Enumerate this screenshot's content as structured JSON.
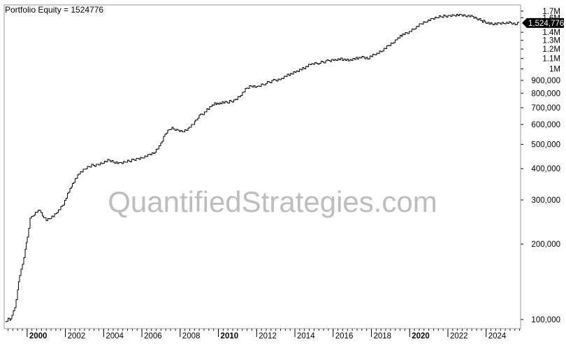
{
  "legend_label": "Portfolio Equity = 1524776",
  "watermark": "QuantifiedStrategies.com",
  "last_value_label": "1,524,776",
  "colors": {
    "background": "#ffffff",
    "line": "#000000",
    "frame": "#9a9a9a",
    "watermark": "#bdbdbd",
    "badge": "#000000",
    "badge_text": "#ffffff"
  },
  "chart_data": {
    "type": "line",
    "title": "Portfolio Equity = 1524776",
    "y_scale": "log",
    "ylim": [
      92000,
      1800000
    ],
    "xlim": [
      1998.8,
      2025.8
    ],
    "grid": false,
    "legend": "top-left",
    "x_ticks": [
      {
        "label": "2000",
        "value": 2000,
        "bold": true
      },
      {
        "label": "2002",
        "value": 2002,
        "bold": false
      },
      {
        "label": "2004",
        "value": 2004,
        "bold": false
      },
      {
        "label": "2006",
        "value": 2006,
        "bold": false
      },
      {
        "label": "2008",
        "value": 2008,
        "bold": false
      },
      {
        "label": "2010",
        "value": 2010,
        "bold": true
      },
      {
        "label": "2012",
        "value": 2012,
        "bold": false
      },
      {
        "label": "2014",
        "value": 2014,
        "bold": false
      },
      {
        "label": "2016",
        "value": 2016,
        "bold": false
      },
      {
        "label": "2018",
        "value": 2018,
        "bold": false
      },
      {
        "label": "2020",
        "value": 2020,
        "bold": true
      },
      {
        "label": "2022",
        "value": 2022,
        "bold": false
      },
      {
        "label": "2024",
        "value": 2024,
        "bold": false
      }
    ],
    "y_ticks": [
      {
        "label": "1.7M",
        "value": 1700000
      },
      {
        "label": "1.6M",
        "value": 1600000
      },
      {
        "label": "1.4M",
        "value": 1400000
      },
      {
        "label": "1.3M",
        "value": 1300000
      },
      {
        "label": "1.2M",
        "value": 1200000
      },
      {
        "label": "1.1M",
        "value": 1100000
      },
      {
        "label": "1M",
        "value": 1000000
      },
      {
        "label": "900,000",
        "value": 900000
      },
      {
        "label": "800,000",
        "value": 800000
      },
      {
        "label": "700,000",
        "value": 700000
      },
      {
        "label": "600,000",
        "value": 600000
      },
      {
        "label": "500,000",
        "value": 500000
      },
      {
        "label": "400,000",
        "value": 400000
      },
      {
        "label": "300,000",
        "value": 300000
      },
      {
        "label": "200,000",
        "value": 200000
      },
      {
        "label": "100,000",
        "value": 100000
      }
    ],
    "series": [
      {
        "x": [
          1998.85,
          1999.0,
          1999.1,
          1999.2,
          1999.35,
          1999.5,
          1999.6,
          1999.75,
          1999.9,
          2000.0,
          2000.15,
          2000.3,
          2000.5,
          2000.65,
          2000.8,
          2001.0,
          2001.15,
          2001.35,
          2001.5,
          2001.7,
          2001.9,
          2002.1,
          2002.3,
          2002.5,
          2002.7,
          2003.0,
          2003.3,
          2003.6,
          2003.9,
          2004.2,
          2004.5,
          2004.8,
          2005.1,
          2005.4,
          2005.7,
          2006.0,
          2006.3,
          2006.6,
          2006.9,
          2007.2,
          2007.5,
          2007.8,
          2008.1,
          2008.4,
          2008.6,
          2008.75,
          2008.85,
          2009.0,
          2009.2,
          2009.4,
          2009.6,
          2009.8,
          2010.0,
          2010.2,
          2010.5,
          2010.8,
          2011.1,
          2011.4,
          2011.7,
          2012.0,
          2012.4,
          2012.8,
          2013.2,
          2013.6,
          2014.0,
          2014.4,
          2014.8,
          2015.2,
          2015.6,
          2016.0,
          2016.4,
          2016.8,
          2017.2,
          2017.5,
          2017.8,
          2018.0,
          2018.2,
          2018.5,
          2018.8,
          2019.1,
          2019.3,
          2019.5,
          2019.7,
          2019.9,
          2020.2,
          2020.5,
          2020.8,
          2021.1,
          2021.4,
          2021.7,
          2022.0,
          2022.3,
          2022.6,
          2022.9,
          2023.2,
          2023.5,
          2023.8,
          2024.0,
          2024.3,
          2024.6,
          2024.9,
          2025.2,
          2025.5,
          2025.7
        ],
        "y": [
          98000,
          101000,
          100000,
          103000,
          112000,
          130000,
          150000,
          168000,
          190000,
          215000,
          252000,
          260000,
          268000,
          272000,
          262000,
          250000,
          254000,
          258000,
          266000,
          274000,
          290000,
          318000,
          340000,
          362000,
          382000,
          398000,
          410000,
          414000,
          422000,
          432000,
          426000,
          418000,
          424000,
          430000,
          438000,
          444000,
          452000,
          462000,
          488000,
          548000,
          580000,
          572000,
          565000,
          575000,
          596000,
          612000,
          628000,
          648000,
          665000,
          690000,
          712000,
          726000,
          725000,
          730000,
          738000,
          748000,
          780000,
          828000,
          858000,
          842000,
          872000,
          896000,
          912000,
          945000,
          972000,
          1000000,
          1040000,
          1055000,
          1072000,
          1090000,
          1095000,
          1082000,
          1100000,
          1110000,
          1095000,
          1120000,
          1150000,
          1180000,
          1225000,
          1268000,
          1310000,
          1345000,
          1372000,
          1400000,
          1450000,
          1500000,
          1540000,
          1570000,
          1600000,
          1620000,
          1630000,
          1645000,
          1640000,
          1630000,
          1615000,
          1585000,
          1550000,
          1535000,
          1520000,
          1515000,
          1522000,
          1524776,
          1500000,
          1524776
        ]
      }
    ]
  }
}
